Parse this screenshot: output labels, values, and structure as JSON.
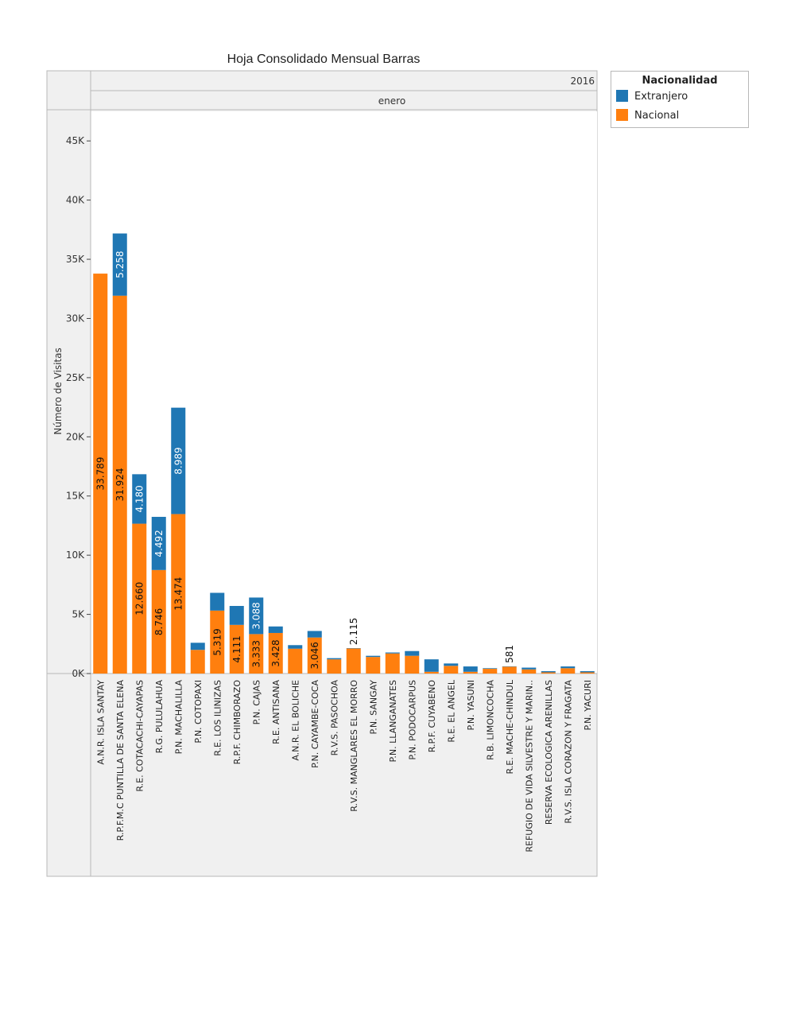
{
  "legend": {
    "title": "Nacionalidad",
    "items": [
      {
        "label": "Extranjero",
        "color": "#1f77b4"
      },
      {
        "label": "Nacional",
        "color": "#ff7f0e"
      }
    ]
  },
  "chart_data": {
    "type": "bar",
    "stacked": true,
    "title": "Hoja Consolidado Mensual Barras",
    "column_header": "2016",
    "row_header": "enero",
    "xlabel": "",
    "ylabel": "Número de Visitas",
    "ylim": [
      0,
      47500
    ],
    "yticks": [
      0,
      5000,
      10000,
      15000,
      20000,
      25000,
      30000,
      35000,
      40000,
      45000
    ],
    "ytick_labels": [
      "0K",
      "5K",
      "10K",
      "15K",
      "20K",
      "25K",
      "30K",
      "35K",
      "40K",
      "45K"
    ],
    "grid": false,
    "legend_position": "top-right",
    "categories": [
      "A.N.R. ISLA SANTAY",
      "R.P.F.M.C PUNTILLA DE SANTA ELENA",
      "R.E. COTACACHI-CAYAPAS",
      "R.G. PULULAHUA",
      "P.N. MACHALILLA",
      "P.N. COTOPAXI",
      "R.E. LOS ILINIZAS",
      "R.P.F. CHIMBORAZO",
      "P.N. CAJAS",
      "R.E. ANTISANA",
      "A.N.R. EL BOLICHE",
      "P.N. CAYAMBE-COCA",
      "R.V.S. PASOCHOA",
      "R.V.S. MANGLARES EL MORRO",
      "P.N. SANGAY",
      "P.N. LLANGANATES",
      "P.N. PODOCARPUS",
      "R.P.F. CUYABENO",
      "R.E. EL ANGEL",
      "P.N. YASUNI",
      "R.B. LIMONCOCHA",
      "R.E. MACHE-CHINDUL",
      "REFUGIO DE VIDA SILVESTRE Y MARIN..",
      "RESERVA ECOLOGICA ARENILLAS",
      "R.V.S. ISLA CORAZON Y FRAGATA",
      "P.N. YACURI"
    ],
    "series": [
      {
        "name": "Nacional",
        "color": "#ff7f0e",
        "values": [
          33789,
          31924,
          12660,
          8746,
          13474,
          2000,
          5319,
          4111,
          3333,
          3428,
          2100,
          3046,
          1200,
          2115,
          1400,
          1700,
          1500,
          150,
          650,
          150,
          400,
          581,
          350,
          100,
          450,
          100
        ],
        "data_labels": [
          "33.789",
          "31.924",
          "12.660",
          "8.746",
          "13.474",
          "",
          "5.319",
          "4.111",
          "3.333",
          "3.428",
          "",
          "3.046",
          "",
          "2.115",
          "",
          "",
          "",
          "",
          "",
          "",
          "",
          "581",
          "",
          "",
          "",
          ""
        ]
      },
      {
        "name": "Extranjero",
        "color": "#1f77b4",
        "values": [
          0,
          5258,
          4180,
          4492,
          8989,
          600,
          1500,
          1600,
          3088,
          550,
          300,
          550,
          100,
          30,
          100,
          80,
          400,
          1050,
          200,
          450,
          50,
          30,
          150,
          100,
          150,
          100
        ],
        "data_labels": [
          "",
          "5.258",
          "4.180",
          "4.492",
          "8.989",
          "",
          "",
          "",
          "3.088",
          "",
          "",
          "",
          "",
          "",
          "",
          "",
          "",
          "",
          "",
          "",
          "",
          "",
          "",
          "",
          "",
          ""
        ]
      }
    ]
  }
}
